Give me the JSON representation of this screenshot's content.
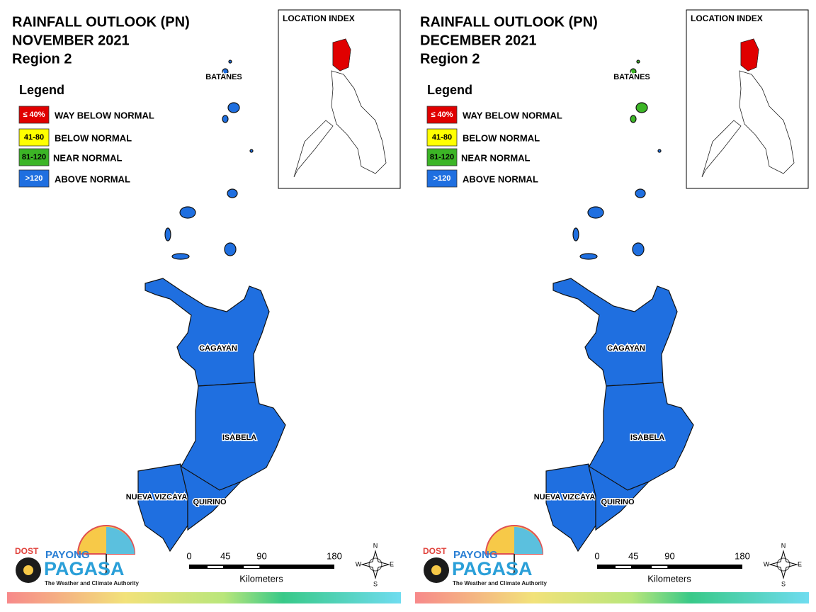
{
  "panels": [
    {
      "title": [
        "RAINFALL OUTLOOK (PN)",
        "NOVEMBER 2021",
        "Region 2"
      ],
      "legend": {
        "title": "Legend",
        "items": [
          {
            "swatch": "≤ 40%",
            "label": "WAY BELOW NORMAL",
            "color": "#e00000",
            "text_color": "#ffffff"
          },
          {
            "swatch": "41-80",
            "label": "BELOW NORMAL",
            "color": "#ffff00",
            "text_color": "#000000"
          },
          {
            "swatch": "81-120",
            "label": "NEAR NORMAL",
            "color": "#3cb526",
            "text_color": "#000000"
          },
          {
            "swatch": ">120",
            "label": "ABOVE NORMAL",
            "color": "#1f6fe0",
            "text_color": "#ffffff"
          }
        ]
      },
      "location_index": "LOCATION INDEX",
      "provinces": [
        {
          "name": "BATANES",
          "color": "#1f6fe0"
        },
        {
          "name": "CAGAYAN",
          "color": "#1f6fe0"
        },
        {
          "name": "ISABELA",
          "color": "#1f6fe0"
        },
        {
          "name": "NUEVA VIZCAYA",
          "color": "#1f6fe0"
        },
        {
          "name": "QUIRINO",
          "color": "#1f6fe0"
        }
      ],
      "scale": {
        "ticks": [
          0,
          45,
          90,
          180
        ],
        "unit": "Kilometers"
      },
      "compass": [
        "N",
        "E",
        "S",
        "W"
      ],
      "logo": {
        "dost": "DOST",
        "payong": "PAYONG",
        "pagasa": "PAGASA",
        "tagline": "The Weather and Climate Authority"
      }
    },
    {
      "title": [
        "RAINFALL OUTLOOK (PN)",
        "DECEMBER 2021",
        "Region 2"
      ],
      "legend": {
        "title": "Legend",
        "items": [
          {
            "swatch": "≤ 40%",
            "label": "WAY BELOW NORMAL",
            "color": "#e00000",
            "text_color": "#ffffff"
          },
          {
            "swatch": "41-80",
            "label": "BELOW NORMAL",
            "color": "#ffff00",
            "text_color": "#000000"
          },
          {
            "swatch": "81-120",
            "label": "NEAR NORMAL",
            "color": "#3cb526",
            "text_color": "#000000"
          },
          {
            "swatch": ">120",
            "label": "ABOVE NORMAL",
            "color": "#1f6fe0",
            "text_color": "#ffffff"
          }
        ]
      },
      "location_index": "LOCATION INDEX",
      "provinces": [
        {
          "name": "BATANES",
          "color": "#3cb526"
        },
        {
          "name": "CAGAYAN",
          "color": "#1f6fe0"
        },
        {
          "name": "ISABELA",
          "color": "#1f6fe0"
        },
        {
          "name": "NUEVA VIZCAYA",
          "color": "#1f6fe0"
        },
        {
          "name": "QUIRINO",
          "color": "#1f6fe0"
        }
      ],
      "scale": {
        "ticks": [
          0,
          45,
          90,
          180
        ],
        "unit": "Kilometers"
      },
      "compass": [
        "N",
        "E",
        "S",
        "W"
      ],
      "logo": {
        "dost": "DOST",
        "payong": "PAYONG",
        "pagasa": "PAGASA",
        "tagline": "The Weather and Climate Authority"
      }
    }
  ]
}
